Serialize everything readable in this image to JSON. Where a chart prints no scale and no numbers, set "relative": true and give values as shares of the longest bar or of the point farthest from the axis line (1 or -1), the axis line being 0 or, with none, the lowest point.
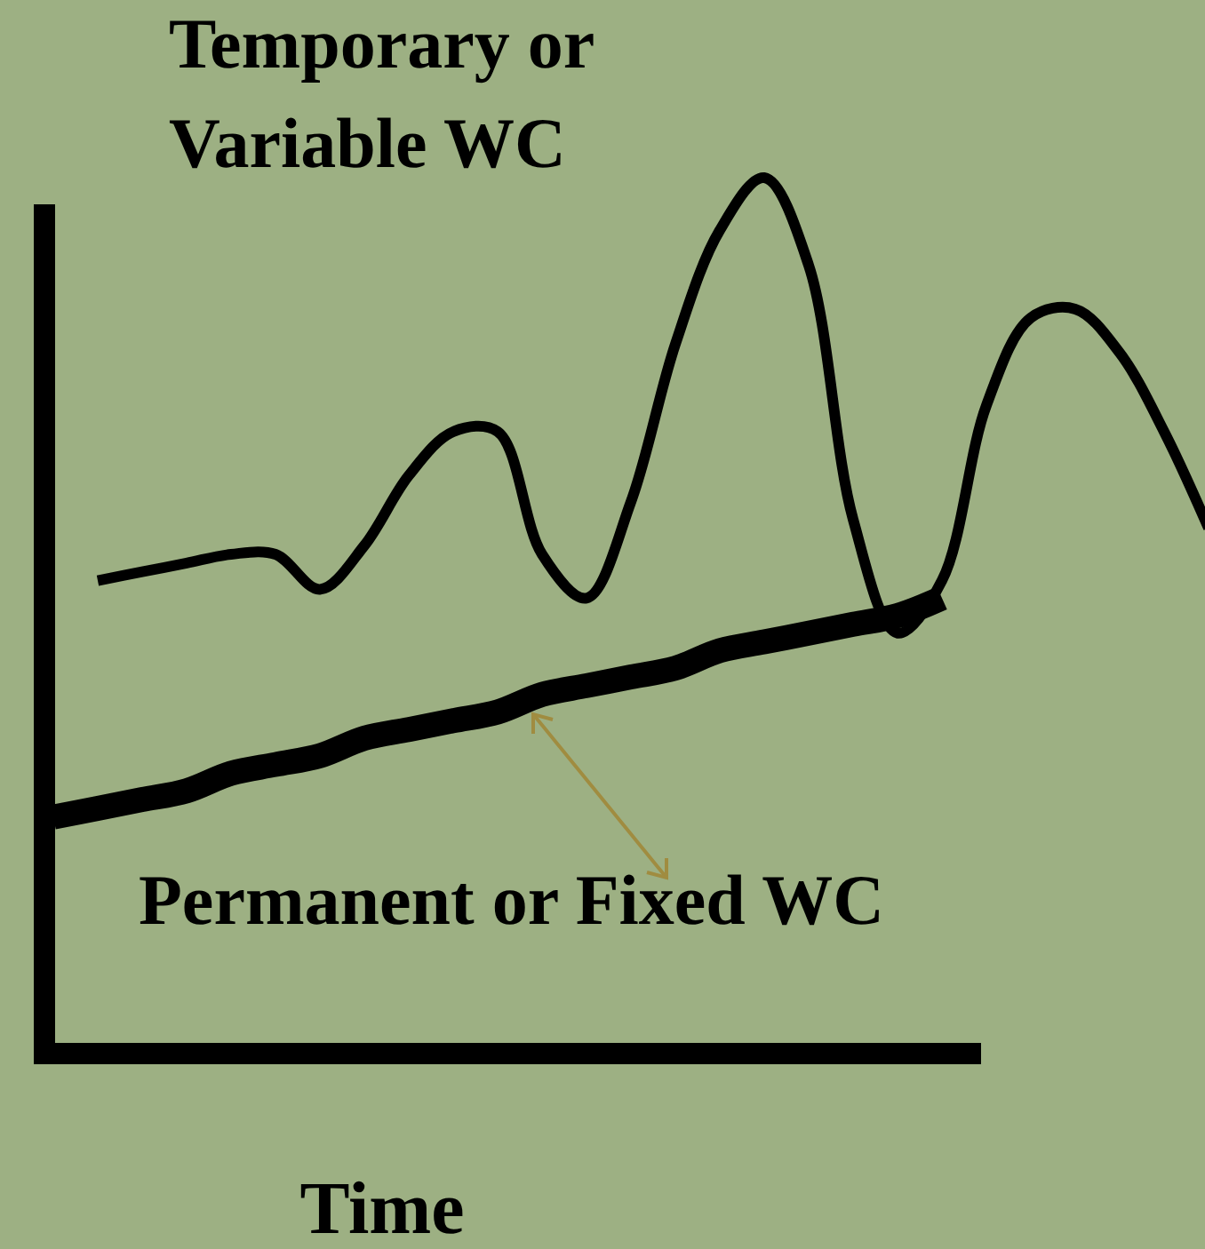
{
  "chart_data": {
    "type": "line",
    "relative": true,
    "xlabel": "Time",
    "categories": [
      null,
      null,
      null,
      null,
      null,
      null,
      null,
      null,
      null,
      null,
      null,
      null,
      null,
      null,
      null,
      null,
      null,
      null,
      null,
      null,
      null,
      null,
      null,
      null,
      null,
      null,
      null
    ],
    "marker": "none",
    "line_style": "solid",
    "series": [
      {
        "name": "Temporary or Variable WC",
        "color": "#000000",
        "values": [
          null,
          0.54,
          0.55,
          0.56,
          0.57,
          0.57,
          0.53,
          0.58,
          0.66,
          0.71,
          0.71,
          0.57,
          0.52,
          0.63,
          0.81,
          0.94,
          1,
          0.9,
          0.61,
          0.48,
          0.54,
          0.74,
          0.84,
          0.85,
          0.8,
          0.71,
          0.6
        ]
      },
      {
        "name": "Permanent or Fixed WC",
        "color": "#000000",
        "values": [
          0.27,
          0.28,
          0.29,
          0.3,
          0.32,
          0.33,
          0.34,
          0.36,
          0.37,
          0.38,
          0.39,
          0.41,
          0.42,
          0.43,
          0.44,
          0.46,
          0.47,
          0.48,
          0.49,
          0.5,
          0.52,
          null,
          null,
          null,
          null,
          null,
          null
        ]
      }
    ]
  }
}
